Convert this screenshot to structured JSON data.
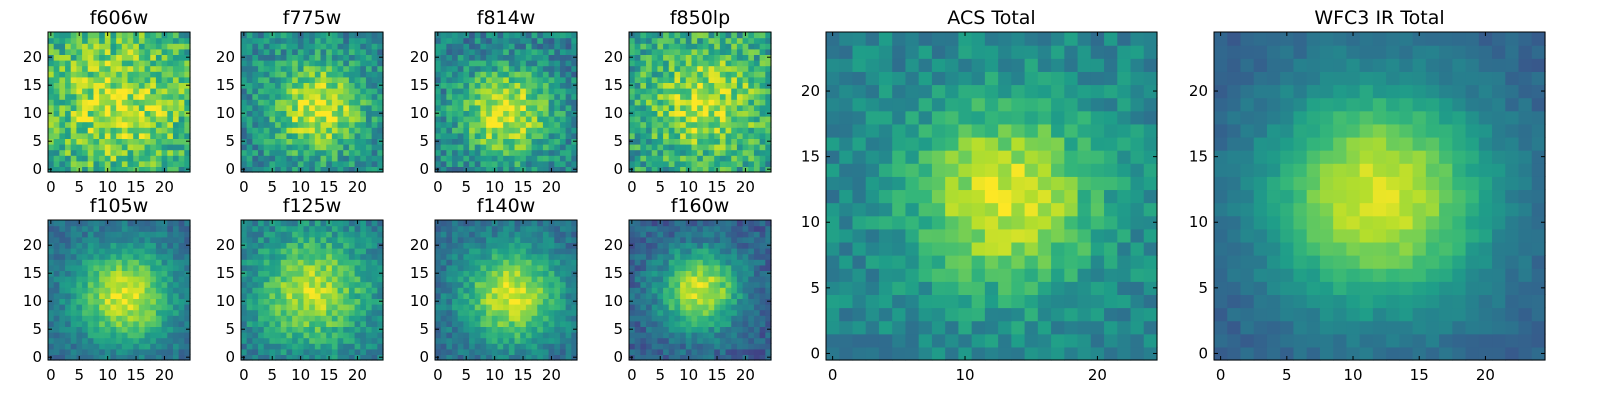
{
  "chart_data": {
    "type": "heatmap",
    "colormap": "viridis",
    "panels": [
      {
        "name": "panel-f606w",
        "title": "f606w",
        "x_ticks": [
          0,
          5,
          10,
          15,
          20
        ],
        "y_ticks": [
          0,
          5,
          10,
          15,
          20
        ],
        "xlim": [
          -0.5,
          24.5
        ],
        "ylim": [
          -0.5,
          24.5
        ],
        "grid_size": 25,
        "center": [
          12,
          12
        ],
        "spread": 9,
        "noise": 0.42,
        "level": 0.55,
        "peak": 0.35,
        "seed": 11
      },
      {
        "name": "panel-f775w",
        "title": "f775w",
        "x_ticks": [
          0,
          5,
          10,
          15,
          20
        ],
        "y_ticks": [
          0,
          5,
          10,
          15,
          20
        ],
        "xlim": [
          -0.5,
          24.5
        ],
        "ylim": [
          -0.5,
          24.5
        ],
        "grid_size": 25,
        "center": [
          13,
          11
        ],
        "spread": 6,
        "noise": 0.35,
        "level": 0.45,
        "peak": 0.5,
        "seed": 23
      },
      {
        "name": "panel-f814w",
        "title": "f814w",
        "x_ticks": [
          0,
          5,
          10,
          15,
          20
        ],
        "y_ticks": [
          0,
          5,
          10,
          15,
          20
        ],
        "xlim": [
          -0.5,
          24.5
        ],
        "ylim": [
          -0.5,
          24.5
        ],
        "grid_size": 25,
        "center": [
          12,
          10
        ],
        "spread": 6,
        "noise": 0.35,
        "level": 0.42,
        "peak": 0.52,
        "seed": 37
      },
      {
        "name": "panel-f850lp",
        "title": "f850lp",
        "x_ticks": [
          0,
          5,
          10,
          15,
          20
        ],
        "y_ticks": [
          0,
          5,
          10,
          15,
          20
        ],
        "xlim": [
          -0.5,
          24.5
        ],
        "ylim": [
          -0.5,
          24.5
        ],
        "grid_size": 25,
        "center": [
          13,
          12
        ],
        "spread": 7,
        "noise": 0.4,
        "level": 0.55,
        "peak": 0.35,
        "seed": 41
      },
      {
        "name": "panel-f105w",
        "title": "f105w",
        "x_ticks": [
          0,
          5,
          10,
          15,
          20
        ],
        "y_ticks": [
          0,
          5,
          10,
          15,
          20
        ],
        "xlim": [
          -0.5,
          24.5
        ],
        "ylim": [
          -0.5,
          24.5
        ],
        "grid_size": 25,
        "center": [
          13,
          11
        ],
        "spread": 6,
        "noise": 0.2,
        "level": 0.35,
        "peak": 0.6,
        "seed": 53
      },
      {
        "name": "panel-f125w",
        "title": "f125w",
        "x_ticks": [
          0,
          5,
          10,
          15,
          20
        ],
        "y_ticks": [
          0,
          5,
          10,
          15,
          20
        ],
        "xlim": [
          -0.5,
          24.5
        ],
        "ylim": [
          -0.5,
          24.5
        ],
        "grid_size": 25,
        "center": [
          12,
          12
        ],
        "spread": 7,
        "noise": 0.25,
        "level": 0.4,
        "peak": 0.5,
        "seed": 67
      },
      {
        "name": "panel-f140w",
        "title": "f140w",
        "x_ticks": [
          0,
          5,
          10,
          15,
          20
        ],
        "y_ticks": [
          0,
          5,
          10,
          15,
          20
        ],
        "xlim": [
          -0.5,
          24.5
        ],
        "ylim": [
          -0.5,
          24.5
        ],
        "grid_size": 25,
        "center": [
          13,
          11
        ],
        "spread": 6,
        "noise": 0.22,
        "level": 0.35,
        "peak": 0.6,
        "seed": 79
      },
      {
        "name": "panel-f160w",
        "title": "f160w",
        "x_ticks": [
          0,
          5,
          10,
          15,
          20
        ],
        "y_ticks": [
          0,
          5,
          10,
          15,
          20
        ],
        "xlim": [
          -0.5,
          24.5
        ],
        "ylim": [
          -0.5,
          24.5
        ],
        "grid_size": 25,
        "center": [
          12,
          12
        ],
        "spread": 5,
        "noise": 0.22,
        "level": 0.3,
        "peak": 0.65,
        "seed": 83
      },
      {
        "name": "panel-acs-total",
        "title": "ACS Total",
        "x_ticks": [
          0,
          10,
          20
        ],
        "y_ticks": [
          0,
          5,
          10,
          15,
          20
        ],
        "xlim": [
          -0.5,
          24.5
        ],
        "ylim": [
          -0.5,
          24.5
        ],
        "grid_size": 25,
        "center": [
          13,
          12
        ],
        "spread": 5,
        "noise": 0.22,
        "level": 0.45,
        "peak": 0.5,
        "seed": 97
      },
      {
        "name": "panel-wfc3-ir-total",
        "title": "WFC3 IR Total",
        "x_ticks": [
          0,
          5,
          10,
          15,
          20
        ],
        "y_ticks": [
          0,
          5,
          10,
          15,
          20
        ],
        "xlim": [
          -0.5,
          24.5
        ],
        "ylim": [
          -0.5,
          24.5
        ],
        "grid_size": 25,
        "center": [
          12,
          12
        ],
        "spread": 6,
        "noise": 0.1,
        "level": 0.3,
        "peak": 0.65,
        "seed": 101
      }
    ]
  }
}
